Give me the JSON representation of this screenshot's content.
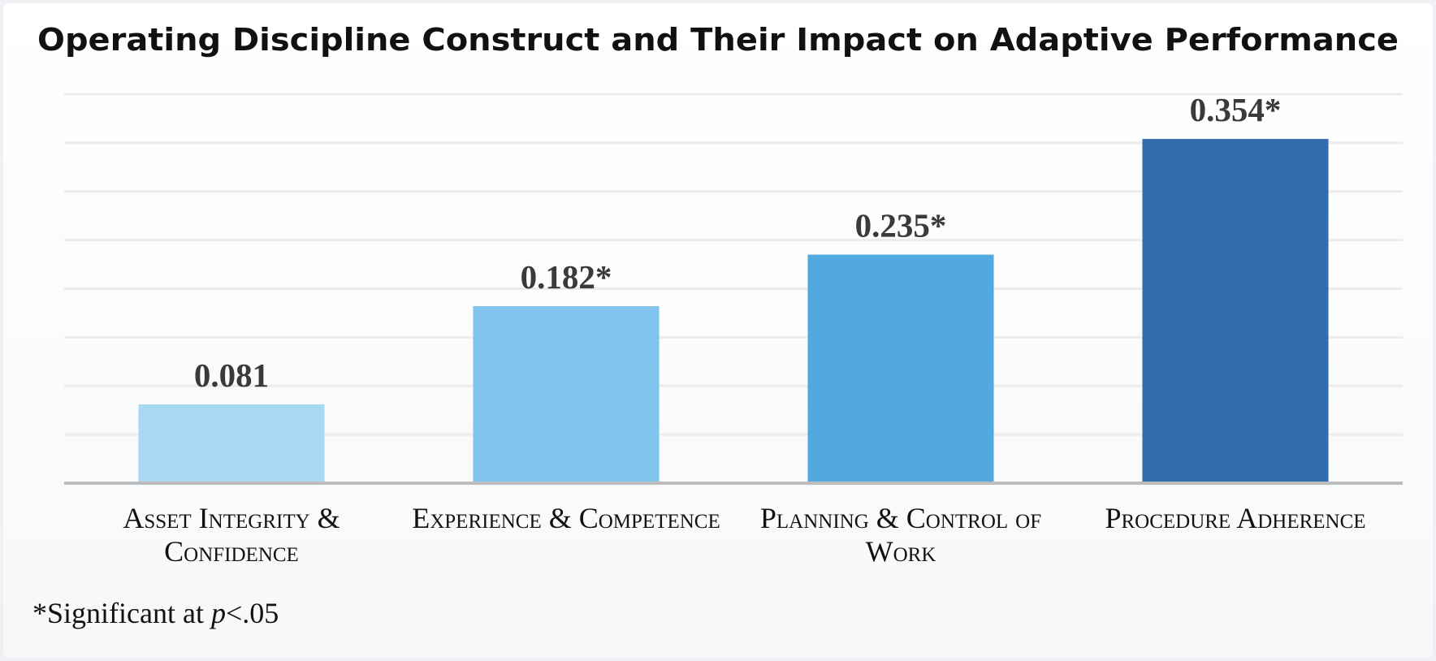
{
  "chart_data": {
    "type": "bar",
    "title": "Operating Discipline Construct and Their Impact on Adaptive Performance",
    "categories": [
      "Asset Integrity & Confidence",
      "Experience & Competence",
      "Planning & Control of Work",
      "Procedure Adherence"
    ],
    "values": [
      0.081,
      0.182,
      0.235,
      0.354
    ],
    "value_labels": [
      "0.081",
      "0.182*",
      "0.235*",
      "0.354*"
    ],
    "colors": [
      "#a8d8f3",
      "#80c4ee",
      "#52a9df",
      "#326db0"
    ],
    "ylim": [
      0,
      0.4
    ],
    "yticks": [
      0,
      0.05,
      0.1,
      0.15,
      0.2,
      0.25,
      0.3,
      0.35,
      0.4
    ],
    "grid": true,
    "footnote": [
      "*Significant at ",
      "p",
      "<.05"
    ]
  }
}
